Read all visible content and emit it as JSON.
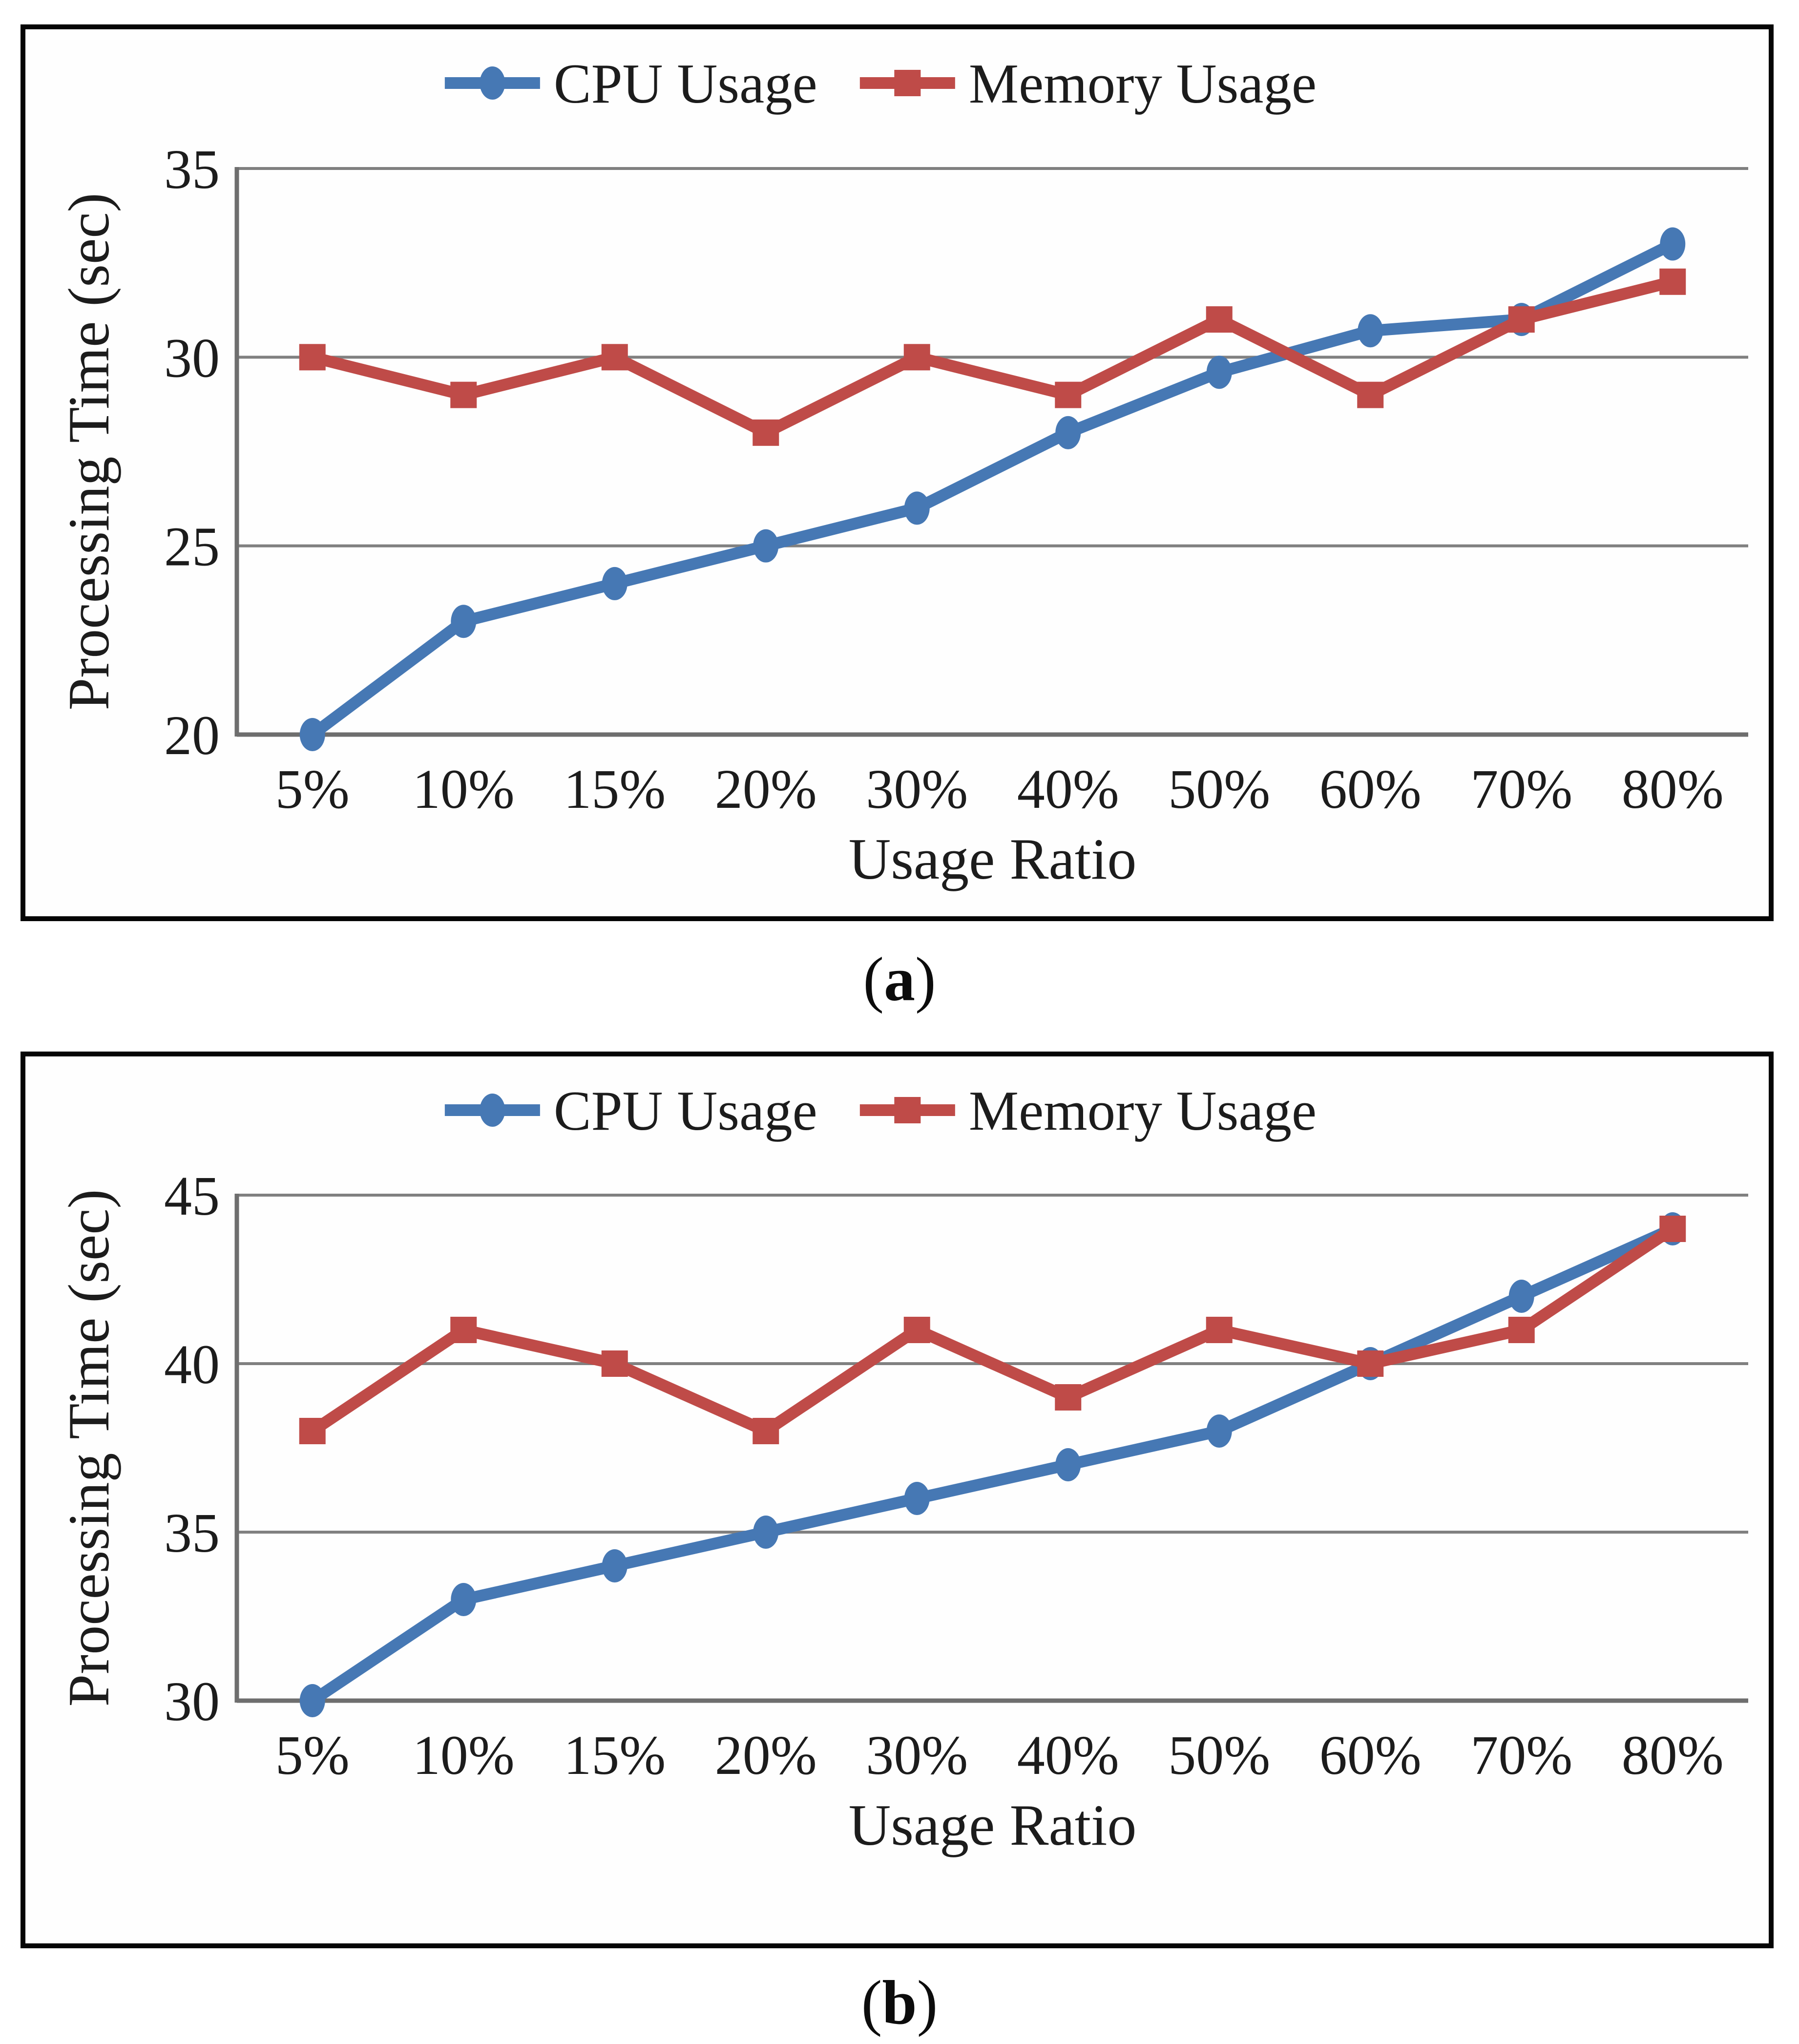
{
  "colors": {
    "cpu": "#4678B4",
    "memory": "#BF4B48",
    "gridline": "#808080",
    "axis_line": "#6E6E6E",
    "text": "#1c1c1c",
    "frame": "#050505"
  },
  "captions": [
    {
      "open": "(",
      "letter": "a",
      "close": ")"
    },
    {
      "open": "(",
      "letter": "b",
      "close": ")"
    }
  ],
  "chart_data": [
    {
      "id": "a",
      "type": "line",
      "title": "",
      "categories": [
        "5%",
        "10%",
        "15%",
        "20%",
        "30%",
        "40%",
        "50%",
        "60%",
        "70%",
        "80%"
      ],
      "series": [
        {
          "name": "CPU Usage",
          "marker": "circle",
          "color_key": "cpu",
          "values": [
            20,
            23,
            24,
            25,
            26,
            28,
            29.6,
            30.7,
            31,
            33
          ]
        },
        {
          "name": "Memory Usage",
          "marker": "square",
          "color_key": "memory",
          "values": [
            30,
            29,
            30,
            28,
            30,
            29,
            31,
            29,
            31,
            32
          ]
        }
      ],
      "xlabel": "Usage Ratio",
      "ylabel": "Processing Time (sec)",
      "ylim": [
        20,
        35
      ],
      "yticks": [
        20,
        25,
        30,
        35
      ],
      "grid": true,
      "legend_position": "top",
      "caption": "(a)"
    },
    {
      "id": "b",
      "type": "line",
      "title": "",
      "categories": [
        "5%",
        "10%",
        "15%",
        "20%",
        "30%",
        "40%",
        "50%",
        "60%",
        "70%",
        "80%"
      ],
      "series": [
        {
          "name": "CPU Usage",
          "marker": "circle",
          "color_key": "cpu",
          "values": [
            30,
            33,
            34,
            35,
            36,
            37,
            38,
            40,
            42,
            44
          ]
        },
        {
          "name": "Memory Usage",
          "marker": "square",
          "color_key": "memory",
          "values": [
            38,
            41,
            40,
            38,
            41,
            39,
            41,
            40,
            41,
            44
          ]
        }
      ],
      "xlabel": "Usage Ratio",
      "ylabel": "Processing Time (sec)",
      "ylim": [
        30,
        45
      ],
      "yticks": [
        30,
        35,
        40,
        45
      ],
      "grid": true,
      "legend_position": "top",
      "caption": "(b)"
    }
  ]
}
